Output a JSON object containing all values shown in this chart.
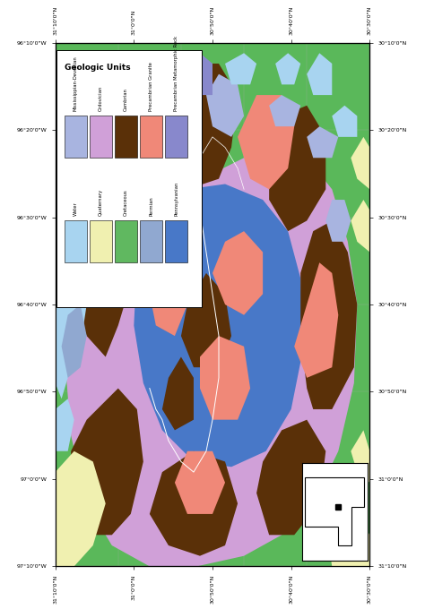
{
  "map_bg_color": "#5ab85a",
  "legend_title": "Geologic Units",
  "legend_items_col1": [
    {
      "label": "Water",
      "color": "#a8d4f0"
    },
    {
      "label": "Quaternary",
      "color": "#f0f0b0"
    },
    {
      "label": "Cretaceous",
      "color": "#60b860"
    },
    {
      "label": "Permian",
      "color": "#90a8d0"
    },
    {
      "label": "Pennsylvanian",
      "color": "#4878c8"
    }
  ],
  "legend_items_col2": [
    {
      "label": "Mississippian-Devonian",
      "color": "#a8b4e0"
    },
    {
      "label": "Ordovician",
      "color": "#d0a0d8"
    },
    {
      "label": "Cambrian",
      "color": "#5a3008"
    },
    {
      "label": "Precambrian Granite",
      "color": "#f08878"
    },
    {
      "label": "Precambrian Metamorphic Rock",
      "color": "#8888cc"
    }
  ],
  "xtick_labels_bottom": [
    "31°10'0\"N",
    "31°0'0\"N",
    "30°50'0\"N",
    "30°40'0\"N",
    "30°30'0\"N"
  ],
  "xtick_labels_top": [
    "31°10'0\"N",
    "31°0'0\"N",
    "30°50'0\"N",
    "30°40'0\"N",
    "30°30'0\"N"
  ],
  "ytick_labels_left": [
    "97°10'0\"W",
    "97°0'0\"W",
    "96°50'0\"W",
    "96°40'0\"W",
    "96°30'0\"W",
    "96°20'0\"W",
    "96°10'0\"W"
  ],
  "ytick_labels_right": [
    "31°10'0\"N",
    "31°0'0\"N",
    "30°50'0\"N",
    "30°40'0\"N",
    "30°30'0\"N",
    "30°20'0\"N",
    "30°10'0\"N"
  ],
  "figsize": [
    4.74,
    6.8
  ],
  "dpi": 100,
  "ordovician_color": "#d0a0d8",
  "cambrian_color": "#5a3008",
  "pennsylvanian_color": "#4878c8",
  "granite_color": "#f08878",
  "water_color": "#a8d4f0",
  "quaternary_color": "#f0f0b0",
  "cretaceous_color": "#60b860",
  "permian_color": "#90a8d0",
  "metamorphic_color": "#8888cc",
  "missdev_color": "#a8b4e0",
  "river_color": "#ffffff",
  "grid_color": "#aaaaaa"
}
